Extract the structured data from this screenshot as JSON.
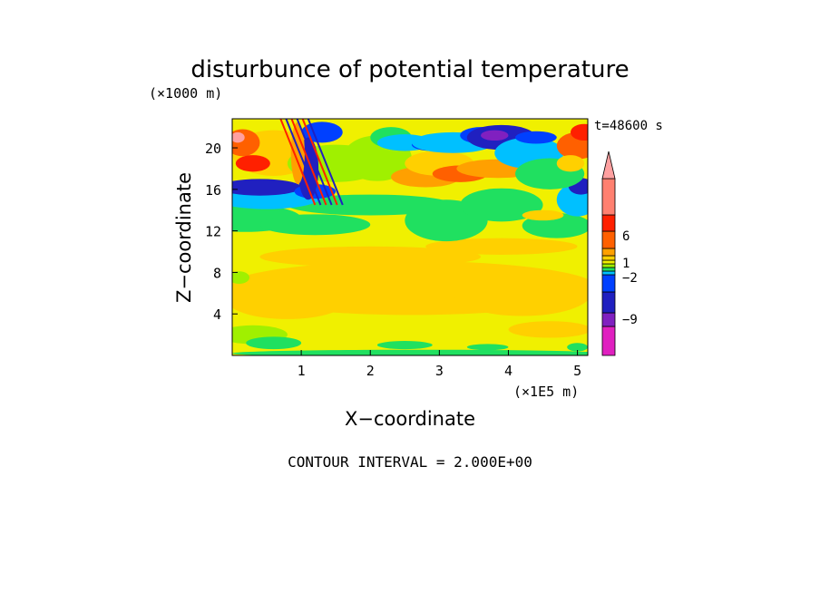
{
  "chart_data": {
    "type": "heatmap",
    "title": "disturbunce of potential temperature",
    "xlabel": "X−coordinate",
    "ylabel": "Z−coordinate",
    "x_unit": "(×1E5 m)",
    "y_unit": "(×1000 m)",
    "time_label": "t=48600 s",
    "footer": "CONTOUR INTERVAL = 2.000E+00",
    "x_ticks": [
      "1",
      "2",
      "3",
      "4",
      "5"
    ],
    "x_tick_values": [
      1,
      2,
      3,
      4,
      5
    ],
    "y_ticks": [
      "4",
      "8",
      "12",
      "16",
      "20"
    ],
    "y_tick_values": [
      4,
      8,
      12,
      16,
      20
    ],
    "xlim": [
      0,
      5.15
    ],
    "ylim": [
      0,
      22.8
    ],
    "colorbar": {
      "colors": [
        "#e020c0",
        "#8020c0",
        "#2020c0",
        "#0040ff",
        "#00c0ff",
        "#20e060",
        "#a0f000",
        "#f0f000",
        "#ffd000",
        "#ffa000",
        "#ff6000",
        "#ff2000",
        "#ff8070",
        "#ffa0a0"
      ],
      "labels": [
        "6",
        "1",
        "−2",
        "−9"
      ],
      "label_values": [
        6,
        1,
        -2,
        -9
      ]
    }
  }
}
